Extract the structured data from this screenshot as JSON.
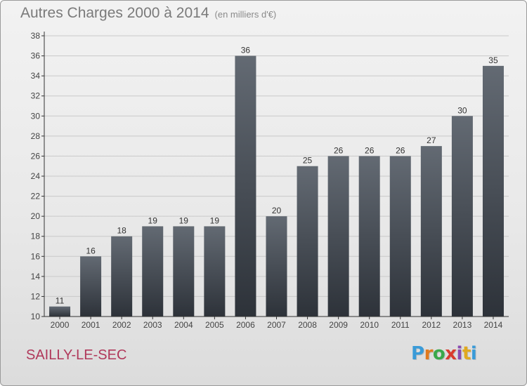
{
  "title": "Autres Charges 2000 à 2014",
  "subtitle": "(en milliers d'€)",
  "commune": "SAILLY-LE-SEC",
  "logo": {
    "letters": [
      "P",
      "r",
      "o",
      "x",
      "i",
      "t",
      "i"
    ],
    "colors": [
      "#3a9bd8",
      "#e07a1f",
      "#3aa84a",
      "#d93b2f",
      "#8a4bb0",
      "#e0a91f",
      "#3a9bd8"
    ]
  },
  "colors": {
    "bar_top": "#636a73",
    "bar_bottom": "#2d3239",
    "axis": "#333333",
    "grid": "#c9c9c9",
    "title": "#7a7a7a",
    "commune": "#b0385a"
  },
  "chart_data": {
    "type": "bar",
    "categories": [
      "2000",
      "2001",
      "2002",
      "2003",
      "2004",
      "2005",
      "2006",
      "2007",
      "2008",
      "2009",
      "2010",
      "2011",
      "2012",
      "2013",
      "2014"
    ],
    "values": [
      11,
      16,
      18,
      19,
      19,
      19,
      36,
      20,
      25,
      26,
      26,
      26,
      27,
      30,
      35
    ],
    "data_labels": [
      "11",
      "16",
      "18",
      "19",
      "19",
      "19",
      "36",
      "20",
      "25",
      "26",
      "26",
      "26",
      "27",
      "30",
      "35"
    ],
    "yticks": [
      10,
      12,
      14,
      16,
      18,
      20,
      22,
      24,
      26,
      28,
      30,
      32,
      34,
      36,
      38
    ],
    "ylim": [
      10,
      38
    ],
    "grid": true,
    "xlabel": "",
    "ylabel": ""
  }
}
